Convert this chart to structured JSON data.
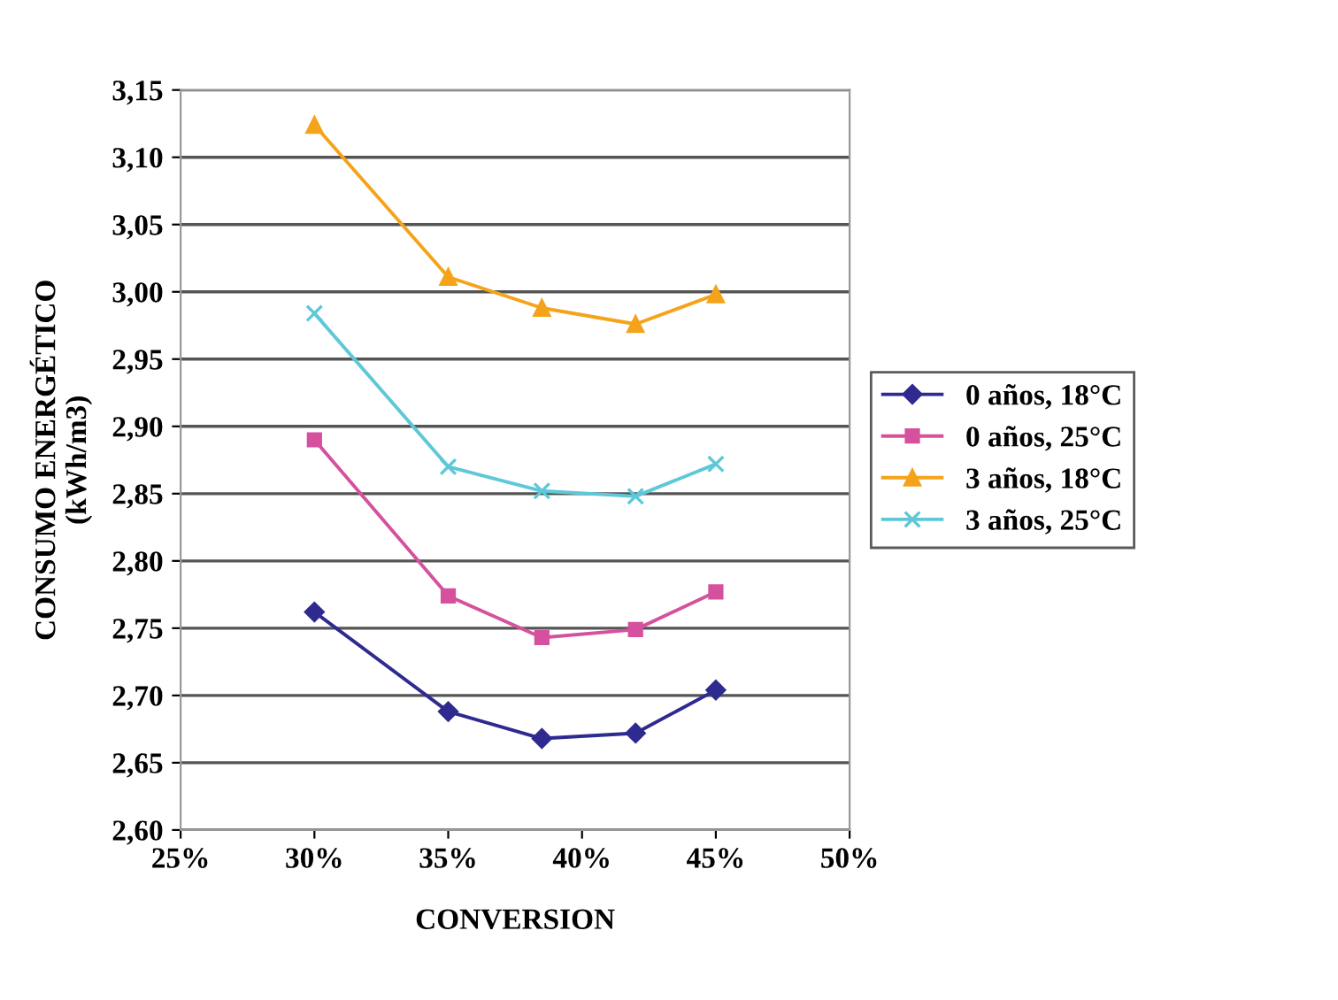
{
  "chart_data": {
    "type": "line",
    "xlabel": "CONVERSION",
    "ylabel": "CONSUMO ENERGÉTICO\n(kWh/m3)",
    "x": [
      30,
      35,
      38.5,
      42,
      45
    ],
    "series": [
      {
        "name": "0 años, 18°C",
        "color": "#2e2a8f",
        "marker": "diamond",
        "values": [
          2.762,
          2.688,
          2.668,
          2.672,
          2.704
        ]
      },
      {
        "name": "0 años, 25°C",
        "color": "#d5519e",
        "marker": "square",
        "values": [
          2.89,
          2.774,
          2.743,
          2.749,
          2.777
        ]
      },
      {
        "name": "3 años, 18°C",
        "color": "#f5a31a",
        "marker": "triangle",
        "values": [
          3.124,
          3.011,
          2.988,
          2.976,
          2.998
        ]
      },
      {
        "name": "3 años, 25°C",
        "color": "#5ec8d8",
        "marker": "cross",
        "values": [
          2.984,
          2.87,
          2.852,
          2.848,
          2.872
        ]
      }
    ],
    "xlim": [
      25,
      50
    ],
    "xticks": [
      {
        "value": 25,
        "label": "25%"
      },
      {
        "value": 30,
        "label": "30%"
      },
      {
        "value": 35,
        "label": "35%"
      },
      {
        "value": 40,
        "label": "40%"
      },
      {
        "value": 45,
        "label": "45%"
      },
      {
        "value": 50,
        "label": "50%"
      }
    ],
    "ylim": [
      2.6,
      3.15
    ],
    "yticks": [
      {
        "value": 2.6,
        "label": "2,60"
      },
      {
        "value": 2.65,
        "label": "2,65"
      },
      {
        "value": 2.7,
        "label": "2,70"
      },
      {
        "value": 2.75,
        "label": "2,75"
      },
      {
        "value": 2.8,
        "label": "2,80"
      },
      {
        "value": 2.85,
        "label": "2,85"
      },
      {
        "value": 2.9,
        "label": "2,90"
      },
      {
        "value": 2.95,
        "label": "2,95"
      },
      {
        "value": 3.0,
        "label": "3,00"
      },
      {
        "value": 3.05,
        "label": "3,05"
      },
      {
        "value": 3.1,
        "label": "3,10"
      },
      {
        "value": 3.15,
        "label": "3,15"
      }
    ],
    "grid": "y",
    "legend": "right",
    "line_style": "solid"
  }
}
